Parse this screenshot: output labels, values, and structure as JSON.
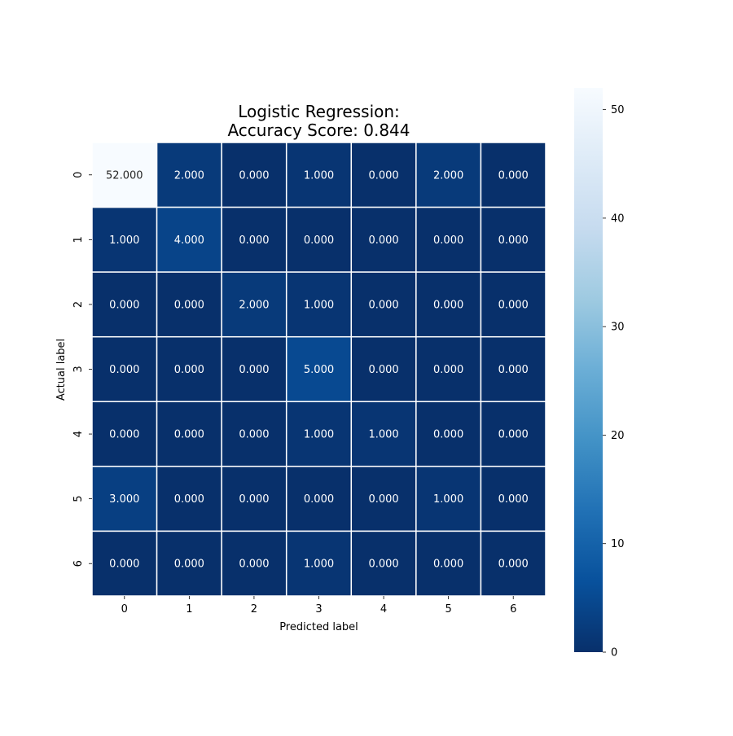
{
  "chart_data": {
    "type": "heatmap",
    "title_lines": [
      "Logistic Regression:",
      "Accuracy Score: 0.844"
    ],
    "xlabel": "Predicted label",
    "ylabel": "Actual label",
    "x_categories": [
      "0",
      "1",
      "2",
      "3",
      "4",
      "5",
      "6"
    ],
    "y_categories": [
      "0",
      "1",
      "2",
      "3",
      "4",
      "5",
      "6"
    ],
    "values": [
      [
        52,
        2,
        0,
        1,
        0,
        2,
        0
      ],
      [
        1,
        4,
        0,
        0,
        0,
        0,
        0
      ],
      [
        0,
        0,
        2,
        1,
        0,
        0,
        0
      ],
      [
        0,
        0,
        0,
        5,
        0,
        0,
        0
      ],
      [
        0,
        0,
        0,
        1,
        1,
        0,
        0
      ],
      [
        3,
        0,
        0,
        0,
        0,
        1,
        0
      ],
      [
        0,
        0,
        0,
        1,
        0,
        0,
        0
      ]
    ],
    "value_format_decimals": 3,
    "colormap": "Blues_r",
    "colorbar": {
      "range": [
        0,
        52
      ],
      "ticks": [
        0,
        10,
        20,
        30,
        40,
        50
      ]
    },
    "cell_line_color": "#ffffff"
  }
}
